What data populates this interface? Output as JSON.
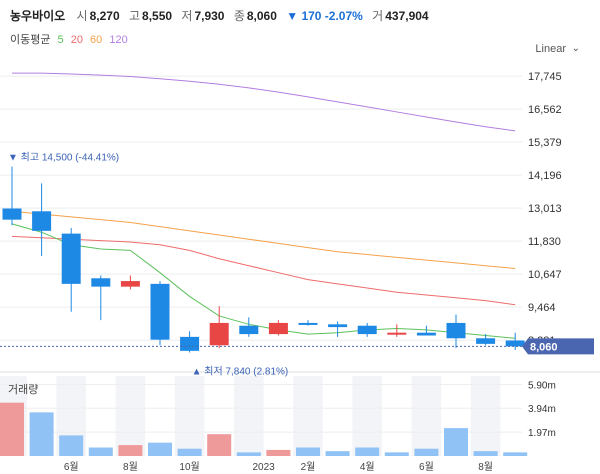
{
  "header": {
    "name": "농우바이오",
    "open_label": "시",
    "open": "8,270",
    "high_label": "고",
    "high": "8,550",
    "low_label": "저",
    "low": "7,930",
    "close_label": "종",
    "close": "8,060",
    "change": "▼ 170 -2.07%",
    "volume_label": "거",
    "volume": "437,904"
  },
  "ma_legend": {
    "label": "이동평균",
    "p5": "5",
    "p20": "20",
    "p60": "60",
    "p120": "120"
  },
  "scale_mode": "Linear",
  "volume_label": "거래량",
  "colors": {
    "up": "#e84545",
    "down": "#1e88e5",
    "ma5": "#5bc25b",
    "ma20": "#f06b6b",
    "ma60": "#f5a14a",
    "ma120": "#b27ee0",
    "current": "#4a66b0"
  },
  "chart_data": {
    "type": "candlestick",
    "interval": "monthly",
    "candles": [
      {
        "open": 13000,
        "high": 14500,
        "low": 12400,
        "close": 12600
      },
      {
        "open": 12900,
        "high": 13900,
        "low": 11300,
        "close": 12200
      },
      {
        "open": 12100,
        "high": 12300,
        "low": 9300,
        "close": 10300
      },
      {
        "open": 10500,
        "high": 10600,
        "low": 9000,
        "close": 10200
      },
      {
        "open": 10200,
        "high": 10600,
        "low": 10100,
        "close": 10400
      },
      {
        "open": 10300,
        "high": 10400,
        "low": 8100,
        "close": 8300
      },
      {
        "open": 8400,
        "high": 8600,
        "low": 7840,
        "close": 7900
      },
      {
        "open": 8100,
        "high": 9500,
        "low": 8000,
        "close": 8900
      },
      {
        "open": 8800,
        "high": 9100,
        "low": 8400,
        "close": 8500
      },
      {
        "open": 8500,
        "high": 9000,
        "low": 8450,
        "close": 8900
      },
      {
        "open": 8900,
        "high": 9000,
        "low": 8800,
        "close": 8850
      },
      {
        "open": 8850,
        "high": 8950,
        "low": 8400,
        "close": 8750
      },
      {
        "open": 8800,
        "high": 8900,
        "low": 8400,
        "close": 8500
      },
      {
        "open": 8550,
        "high": 8850,
        "low": 8400,
        "close": 8550
      },
      {
        "open": 8550,
        "high": 8800,
        "low": 8500,
        "close": 8450
      },
      {
        "open": 8900,
        "high": 9200,
        "low": 8000,
        "close": 8350
      },
      {
        "open": 8350,
        "high": 8500,
        "low": 8100,
        "close": 8150
      },
      {
        "open": 8270,
        "high": 8550,
        "low": 7930,
        "close": 8060
      }
    ],
    "ma5": [
      12450,
      12150,
      11700,
      11550,
      11500,
      10700,
      9850,
      9150,
      8850,
      8650,
      8500,
      8550,
      8650,
      8700,
      8650,
      8550,
      8450,
      8350
    ],
    "ma20": [
      12000,
      11950,
      11900,
      11850,
      11800,
      11700,
      11500,
      11200,
      10950,
      10700,
      10450,
      10300,
      10150,
      10000,
      9900,
      9800,
      9700,
      9550
    ],
    "ma60": [
      12900,
      12800,
      12700,
      12600,
      12500,
      12350,
      12200,
      12050,
      11900,
      11750,
      11600,
      11450,
      11350,
      11250,
      11150,
      11050,
      10950,
      10850
    ],
    "ma120": [
      17850,
      17850,
      17820,
      17780,
      17730,
      17650,
      17560,
      17450,
      17320,
      17170,
      17000,
      16820,
      16640,
      16460,
      16280,
      16100,
      15930,
      15780
    ],
    "volumes": [
      {
        "value": 4.4,
        "up": true
      },
      {
        "value": 3.6,
        "up": false
      },
      {
        "value": 1.7,
        "up": false
      },
      {
        "value": 0.7,
        "up": false
      },
      {
        "value": 0.9,
        "up": true
      },
      {
        "value": 1.1,
        "up": false
      },
      {
        "value": 0.6,
        "up": false
      },
      {
        "value": 1.8,
        "up": true
      },
      {
        "value": 0.3,
        "up": false
      },
      {
        "value": 0.5,
        "up": true
      },
      {
        "value": 0.7,
        "up": false
      },
      {
        "value": 0.4,
        "up": false
      },
      {
        "value": 0.7,
        "up": false
      },
      {
        "value": 0.3,
        "up": false
      },
      {
        "value": 0.6,
        "up": false
      },
      {
        "value": 2.3,
        "up": false
      },
      {
        "value": 0.4,
        "up": false
      },
      {
        "value": 0.3,
        "up": false
      }
    ],
    "yticks": [
      "17,745",
      "16,562",
      "15,379",
      "14,196",
      "13,013",
      "11,830",
      "10,647",
      "9,464",
      "8,281"
    ],
    "ytick_values": [
      17745,
      16562,
      15379,
      14196,
      13013,
      11830,
      10647,
      9464,
      8281
    ],
    "ylim": [
      7500,
      18500
    ],
    "vticks": [
      "5.90m",
      "3.94m",
      "1.97m"
    ],
    "vtick_values": [
      5.9,
      3.94,
      1.97
    ],
    "vmax": 6.6,
    "xticks": [
      {
        "label": "6월",
        "index": 2
      },
      {
        "label": "8월",
        "index": 4
      },
      {
        "label": "10월",
        "index": 6
      },
      {
        "label": "2023",
        "index": 8.5
      },
      {
        "label": "2월",
        "index": 10
      },
      {
        "label": "4월",
        "index": 12
      },
      {
        "label": "6월",
        "index": 14
      },
      {
        "label": "8월",
        "index": 16
      }
    ],
    "high_annotation": {
      "text": "▼ 최고 14,500 (-44.41%)",
      "index": 0,
      "value": 14500
    },
    "low_annotation": {
      "text": "▲ 최저 7,840 (2.81%)",
      "index": 6,
      "value": 7840
    },
    "current_price": {
      "text": "8,060",
      "value": 8060
    }
  }
}
